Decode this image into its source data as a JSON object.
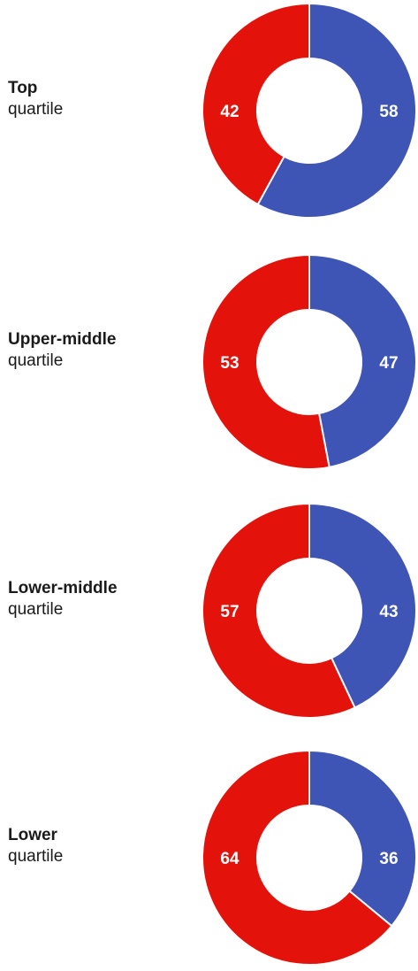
{
  "colors": {
    "blue": "#3f55b5",
    "red": "#e3120b"
  },
  "chart_data": [
    {
      "type": "pie",
      "category": "Top",
      "subtitle": "quartile",
      "values": [
        58,
        42
      ],
      "colors": [
        "#3f55b5",
        "#e3120b"
      ]
    },
    {
      "type": "pie",
      "category": "Upper-middle",
      "subtitle": "quartile",
      "values": [
        47,
        53
      ],
      "colors": [
        "#3f55b5",
        "#e3120b"
      ]
    },
    {
      "type": "pie",
      "category": "Lower-middle",
      "subtitle": "quartile",
      "values": [
        43,
        57
      ],
      "colors": [
        "#3f55b5",
        "#e3120b"
      ]
    },
    {
      "type": "pie",
      "category": "Lower",
      "subtitle": "quartile",
      "values": [
        36,
        64
      ],
      "colors": [
        "#3f55b5",
        "#e3120b"
      ]
    }
  ]
}
